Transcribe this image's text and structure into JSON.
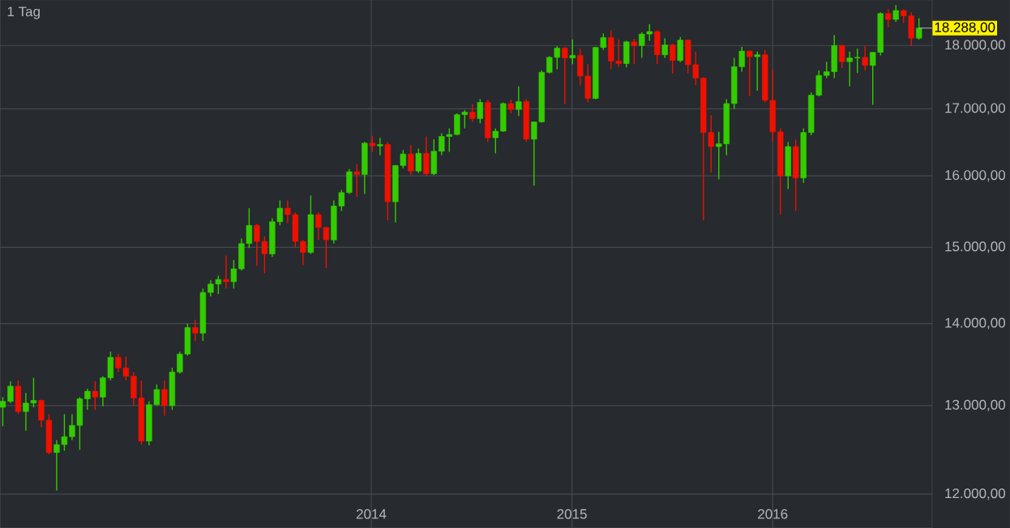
{
  "chart_data": {
    "type": "candlestick",
    "subtitle": "1 Tag",
    "x": [
      "2012-03-02",
      "2012-03-16",
      "2012-03-30",
      "2012-04-13",
      "2012-04-27",
      "2012-05-11",
      "2012-05-25",
      "2012-06-08",
      "2012-06-22",
      "2012-07-06",
      "2012-07-20",
      "2012-08-03",
      "2012-08-17",
      "2012-08-31",
      "2012-09-14",
      "2012-09-28",
      "2012-10-12",
      "2012-10-26",
      "2012-11-09",
      "2012-11-23",
      "2012-12-07",
      "2012-12-21",
      "2013-01-04",
      "2013-01-18",
      "2013-02-01",
      "2013-02-15",
      "2013-03-01",
      "2013-03-15",
      "2013-03-29",
      "2013-04-12",
      "2013-04-26",
      "2013-05-10",
      "2013-05-24",
      "2013-06-07",
      "2013-06-21",
      "2013-07-05",
      "2013-07-19",
      "2013-08-02",
      "2013-08-16",
      "2013-08-30",
      "2013-09-13",
      "2013-09-27",
      "2013-10-11",
      "2013-10-25",
      "2013-11-08",
      "2013-11-22",
      "2013-12-06",
      "2013-12-20",
      "2014-01-03",
      "2014-01-17",
      "2014-01-31",
      "2014-02-14",
      "2014-02-28",
      "2014-03-14",
      "2014-03-28",
      "2014-04-11",
      "2014-04-25",
      "2014-05-09",
      "2014-05-23",
      "2014-06-06",
      "2014-06-20",
      "2014-07-04",
      "2014-07-18",
      "2014-08-01",
      "2014-08-15",
      "2014-08-29",
      "2014-09-12",
      "2014-09-26",
      "2014-10-10",
      "2014-10-24",
      "2014-11-07",
      "2014-11-21",
      "2014-12-05",
      "2014-12-19",
      "2015-01-02",
      "2015-01-16",
      "2015-01-30",
      "2015-02-13",
      "2015-02-27",
      "2015-03-13",
      "2015-03-27",
      "2015-04-10",
      "2015-04-24",
      "2015-05-08",
      "2015-05-22",
      "2015-06-05",
      "2015-06-19",
      "2015-07-03",
      "2015-07-17",
      "2015-07-31",
      "2015-08-14",
      "2015-08-28",
      "2015-09-11",
      "2015-09-25",
      "2015-10-09",
      "2015-10-23",
      "2015-11-06",
      "2015-11-20",
      "2015-12-04",
      "2015-12-18",
      "2016-01-01",
      "2016-01-15",
      "2016-01-29",
      "2016-02-12",
      "2016-02-26",
      "2016-03-11",
      "2016-03-25",
      "2016-04-08",
      "2016-04-22",
      "2016-05-06",
      "2016-05-20",
      "2016-06-03",
      "2016-06-17",
      "2016-07-01",
      "2016-07-15",
      "2016-07-29",
      "2016-08-12",
      "2016-08-26",
      "2016-09-09",
      "2016-09-23"
    ],
    "ohlc": [
      [
        12980,
        13100,
        12760,
        13050
      ],
      [
        13050,
        13290,
        13030,
        13230
      ],
      [
        13230,
        13300,
        12900,
        12930
      ],
      [
        12930,
        13150,
        12710,
        13030
      ],
      [
        13030,
        13330,
        12980,
        13060
      ],
      [
        13060,
        13070,
        12750,
        12830
      ],
      [
        12830,
        12900,
        12440,
        12460
      ],
      [
        12460,
        12600,
        12040,
        12550
      ],
      [
        12550,
        12900,
        12480,
        12640
      ],
      [
        12640,
        12900,
        12600,
        12770
      ],
      [
        12770,
        13100,
        12490,
        13080
      ],
      [
        13080,
        13200,
        12950,
        13170
      ],
      [
        13170,
        13290,
        12950,
        13100
      ],
      [
        13100,
        13350,
        12990,
        13330
      ],
      [
        13330,
        13650,
        13300,
        13580
      ],
      [
        13580,
        13620,
        13400,
        13450
      ],
      [
        13450,
        13590,
        13300,
        13350
      ],
      [
        13350,
        13400,
        13000,
        13090
      ],
      [
        13090,
        13300,
        12550,
        12590
      ],
      [
        12590,
        13050,
        12540,
        13010
      ],
      [
        13010,
        13250,
        13000,
        13190
      ],
      [
        13190,
        13300,
        12880,
        13000
      ],
      [
        13000,
        13450,
        12950,
        13400
      ],
      [
        13400,
        13650,
        13380,
        13620
      ],
      [
        13620,
        14000,
        13600,
        13950
      ],
      [
        13950,
        14050,
        13780,
        13880
      ],
      [
        13880,
        14450,
        13780,
        14400
      ],
      [
        14400,
        14560,
        14350,
        14510
      ],
      [
        14510,
        14620,
        14380,
        14570
      ],
      [
        14570,
        14890,
        14450,
        14540
      ],
      [
        14540,
        14830,
        14450,
        14710
      ],
      [
        14710,
        15120,
        14690,
        15050
      ],
      [
        15050,
        15540,
        14990,
        15300
      ],
      [
        15300,
        15320,
        14750,
        15080
      ],
      [
        15080,
        15150,
        14650,
        14910
      ],
      [
        14910,
        15400,
        14870,
        15350
      ],
      [
        15350,
        15650,
        15300,
        15540
      ],
      [
        15540,
        15650,
        15330,
        15450
      ],
      [
        15450,
        15480,
        15000,
        15080
      ],
      [
        15080,
        15100,
        14760,
        14930
      ],
      [
        14930,
        15720,
        14910,
        15450
      ],
      [
        15450,
        15480,
        15100,
        15270
      ],
      [
        15270,
        15280,
        14720,
        15100
      ],
      [
        15100,
        15650,
        15050,
        15570
      ],
      [
        15570,
        15800,
        15500,
        15760
      ],
      [
        15760,
        16100,
        15740,
        16060
      ],
      [
        16060,
        16170,
        15700,
        16020
      ],
      [
        16020,
        16500,
        15740,
        16480
      ],
      [
        16480,
        16590,
        16350,
        16440
      ],
      [
        16440,
        16560,
        16300,
        16460
      ],
      [
        16460,
        16500,
        15370,
        15630
      ],
      [
        15630,
        16160,
        15340,
        16150
      ],
      [
        16150,
        16380,
        16110,
        16320
      ],
      [
        16320,
        16450,
        16010,
        16070
      ],
      [
        16070,
        16400,
        16040,
        16330
      ],
      [
        16330,
        16580,
        16000,
        16030
      ],
      [
        16030,
        16540,
        16010,
        16360
      ],
      [
        16360,
        16630,
        16300,
        16580
      ],
      [
        16580,
        16700,
        16350,
        16610
      ],
      [
        16610,
        16930,
        16600,
        16910
      ],
      [
        16910,
        16980,
        16700,
        16950
      ],
      [
        16950,
        17070,
        16800,
        16850
      ],
      [
        16850,
        17150,
        16780,
        17100
      ],
      [
        17100,
        17140,
        16500,
        16560
      ],
      [
        16560,
        16700,
        16330,
        16660
      ],
      [
        16660,
        17100,
        16650,
        17080
      ],
      [
        17080,
        17140,
        16930,
        16990
      ],
      [
        16990,
        17350,
        16890,
        17110
      ],
      [
        17110,
        17150,
        16500,
        16540
      ],
      [
        16540,
        16800,
        15860,
        16800
      ],
      [
        16800,
        17600,
        16790,
        17570
      ],
      [
        17570,
        17830,
        17550,
        17810
      ],
      [
        17810,
        17990,
        17620,
        17960
      ],
      [
        17960,
        17970,
        17070,
        17800
      ],
      [
        17800,
        18100,
        17700,
        17840
      ],
      [
        17840,
        17950,
        17360,
        17510
      ],
      [
        17510,
        17700,
        17100,
        17160
      ],
      [
        17160,
        17980,
        17150,
        17970
      ],
      [
        17970,
        18200,
        17930,
        18130
      ],
      [
        18130,
        18250,
        17620,
        17750
      ],
      [
        17750,
        18100,
        17660,
        17710
      ],
      [
        17710,
        18080,
        17650,
        18060
      ],
      [
        18060,
        18110,
        17700,
        18000
      ],
      [
        18000,
        18220,
        17800,
        18190
      ],
      [
        18190,
        18350,
        18080,
        18230
      ],
      [
        18230,
        18250,
        17700,
        17850
      ],
      [
        17850,
        18120,
        17800,
        18010
      ],
      [
        18010,
        18030,
        17550,
        17760
      ],
      [
        17760,
        18140,
        17730,
        18090
      ],
      [
        18090,
        18100,
        17550,
        17690
      ],
      [
        17690,
        17900,
        17370,
        17480
      ],
      [
        17480,
        17490,
        15370,
        16640
      ],
      [
        16640,
        16900,
        16050,
        16430
      ],
      [
        16430,
        16650,
        15950,
        16470
      ],
      [
        16470,
        17150,
        16300,
        17080
      ],
      [
        17080,
        17800,
        17000,
        17660
      ],
      [
        17660,
        17980,
        17580,
        17910
      ],
      [
        17910,
        17920,
        17200,
        17820
      ],
      [
        17820,
        17900,
        17280,
        17850
      ],
      [
        17850,
        17930,
        17100,
        17130
      ],
      [
        17130,
        17620,
        16500,
        16650
      ],
      [
        16650,
        16700,
        15450,
        16000
      ],
      [
        16000,
        16500,
        15810,
        16430
      ],
      [
        16430,
        16530,
        15500,
        15970
      ],
      [
        15970,
        16700,
        15900,
        16640
      ],
      [
        16640,
        17250,
        16600,
        17210
      ],
      [
        17210,
        17600,
        17190,
        17520
      ],
      [
        17520,
        17740,
        17480,
        17580
      ],
      [
        17580,
        18170,
        17480,
        18000
      ],
      [
        18000,
        18010,
        17640,
        17740
      ],
      [
        17740,
        17900,
        17350,
        17800
      ],
      [
        17800,
        17950,
        17560,
        17810
      ],
      [
        17810,
        18000,
        17600,
        17680
      ],
      [
        17680,
        17890,
        17060,
        17890
      ],
      [
        17890,
        18550,
        17840,
        18530
      ],
      [
        18530,
        18600,
        18300,
        18430
      ],
      [
        18430,
        18670,
        18390,
        18580
      ],
      [
        18580,
        18600,
        18370,
        18490
      ],
      [
        18490,
        18550,
        17990,
        18120
      ],
      [
        18120,
        18450,
        18100,
        18288
      ]
    ],
    "colors": [
      "#33cc00",
      "#33cc00",
      "#ee1100",
      "#33cc00",
      "#33cc00",
      "#ee1100",
      "#ee1100",
      "#33cc00",
      "#33cc00",
      "#33cc00",
      "#33cc00",
      "#33cc00",
      "#ee1100",
      "#33cc00",
      "#33cc00",
      "#ee1100",
      "#ee1100",
      "#ee1100",
      "#ee1100",
      "#33cc00",
      "#33cc00",
      "#ee1100",
      "#33cc00",
      "#33cc00",
      "#33cc00",
      "#ee1100",
      "#33cc00",
      "#33cc00",
      "#33cc00",
      "#ee1100",
      "#33cc00",
      "#33cc00",
      "#33cc00",
      "#ee1100",
      "#ee1100",
      "#33cc00",
      "#33cc00",
      "#ee1100",
      "#ee1100",
      "#ee1100",
      "#33cc00",
      "#ee1100",
      "#ee1100",
      "#33cc00",
      "#33cc00",
      "#33cc00",
      "#ee1100",
      "#33cc00",
      "#ee1100",
      "#33cc00",
      "#ee1100",
      "#33cc00",
      "#33cc00",
      "#ee1100",
      "#33cc00",
      "#ee1100",
      "#33cc00",
      "#33cc00",
      "#33cc00",
      "#33cc00",
      "#33cc00",
      "#ee1100",
      "#33cc00",
      "#ee1100",
      "#33cc00",
      "#33cc00",
      "#ee1100",
      "#33cc00",
      "#ee1100",
      "#33cc00",
      "#33cc00",
      "#33cc00",
      "#33cc00",
      "#ee1100",
      "#33cc00",
      "#ee1100",
      "#ee1100",
      "#33cc00",
      "#33cc00",
      "#ee1100",
      "#ee1100",
      "#33cc00",
      "#ee1100",
      "#33cc00",
      "#33cc00",
      "#ee1100",
      "#33cc00",
      "#ee1100",
      "#33cc00",
      "#ee1100",
      "#ee1100",
      "#ee1100",
      "#ee1100",
      "#33cc00",
      "#33cc00",
      "#33cc00",
      "#33cc00",
      "#ee1100",
      "#33cc00",
      "#ee1100",
      "#ee1100",
      "#ee1100",
      "#33cc00",
      "#ee1100",
      "#33cc00",
      "#33cc00",
      "#33cc00",
      "#33cc00",
      "#33cc00",
      "#ee1100",
      "#33cc00",
      "#33cc00",
      "#ee1100",
      "#33cc00",
      "#33cc00",
      "#ee1100",
      "#33cc00",
      "#ee1100",
      "#ee1100",
      "#33cc00"
    ],
    "xlim": [
      "2012-02-26",
      "2016-10-17"
    ],
    "xticks": [
      "2014",
      "2015",
      "2016"
    ],
    "ylim": [
      11640,
      18760
    ],
    "log": "y",
    "yticks": [
      {
        "value": 12000,
        "label": "12.000,00"
      },
      {
        "value": 13000,
        "label": "13.000,00"
      },
      {
        "value": 14000,
        "label": "14.000,00"
      },
      {
        "value": 15000,
        "label": "15.000,00"
      },
      {
        "value": 16000,
        "label": "16.000,00"
      },
      {
        "value": 17000,
        "label": "17.000,00"
      },
      {
        "value": 18000,
        "label": "18.000,00"
      }
    ],
    "grid": true,
    "annotations": [
      {
        "text": "18.288,00",
        "x": "2016-09-23",
        "y": 18288
      }
    ]
  }
}
